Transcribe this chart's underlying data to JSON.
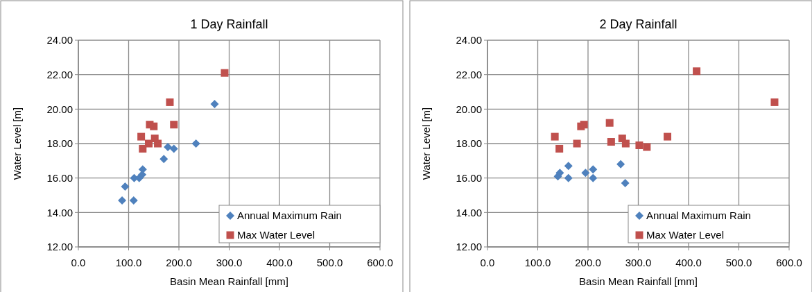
{
  "chart_data": [
    {
      "type": "scatter",
      "title": "1 Day Rainfall",
      "xlabel": "Basin Mean Rainfall [mm]",
      "ylabel": "Water Level [m]",
      "xlim": [
        0,
        600
      ],
      "xticks": [
        {
          "value": 0,
          "label": "0.0"
        },
        {
          "value": 100,
          "label": "100.0"
        },
        {
          "value": 200,
          "label": "200.0"
        },
        {
          "value": 300,
          "label": "300.0"
        },
        {
          "value": 400,
          "label": "400.0"
        },
        {
          "value": 500,
          "label": "500.0"
        },
        {
          "value": 600,
          "label": "600.0"
        }
      ],
      "ylim": [
        12,
        24
      ],
      "yticks": [
        {
          "value": 12,
          "label": "12.00"
        },
        {
          "value": 14,
          "label": "14.00"
        },
        {
          "value": 16,
          "label": "16.00"
        },
        {
          "value": 18,
          "label": "18.00"
        },
        {
          "value": 20,
          "label": "20.00"
        },
        {
          "value": 22,
          "label": "22.00"
        },
        {
          "value": 24,
          "label": "24.00"
        }
      ],
      "grid": true,
      "legend": "bottom right",
      "series": [
        {
          "name": "Annual Maximum Rain",
          "color": "#4f81bd",
          "marker": "diamond",
          "x": [
            87,
            93,
            110,
            111,
            121,
            127,
            128,
            170,
            178,
            190,
            234,
            271
          ],
          "values": [
            14.7,
            15.5,
            14.7,
            16.0,
            16.0,
            16.2,
            16.5,
            17.1,
            17.8,
            17.7,
            18.0,
            20.3
          ]
        },
        {
          "name": "Max Water Level",
          "color": "#c0504d",
          "marker": "square",
          "x": [
            291,
            182,
            190,
            142,
            150,
            125,
            128,
            152,
            140,
            158
          ],
          "values": [
            22.1,
            20.4,
            19.1,
            19.1,
            19.0,
            18.4,
            17.7,
            18.3,
            18.0,
            18.0
          ]
        }
      ]
    },
    {
      "type": "scatter",
      "title": "2 Day Rainfall",
      "xlabel": "Basin Mean Rainfall [mm]",
      "ylabel": "Water Level [m]",
      "xlim": [
        0,
        600
      ],
      "xticks": [
        {
          "value": 0,
          "label": "0.0"
        },
        {
          "value": 100,
          "label": "100.0"
        },
        {
          "value": 200,
          "label": "200.0"
        },
        {
          "value": 300,
          "label": "300.0"
        },
        {
          "value": 400,
          "label": "400.0"
        },
        {
          "value": 500,
          "label": "500.0"
        },
        {
          "value": 600,
          "label": "600.0"
        }
      ],
      "ylim": [
        12,
        24
      ],
      "yticks": [
        {
          "value": 12,
          "label": "12.00"
        },
        {
          "value": 14,
          "label": "14.00"
        },
        {
          "value": 16,
          "label": "16.00"
        },
        {
          "value": 18,
          "label": "18.00"
        },
        {
          "value": 20,
          "label": "20.00"
        },
        {
          "value": 22,
          "label": "22.00"
        },
        {
          "value": 24,
          "label": "24.00"
        }
      ],
      "grid": true,
      "legend": "bottom right",
      "series": [
        {
          "name": "Annual Maximum Rain",
          "color": "#4f81bd",
          "marker": "diamond",
          "x": [
            140,
            144,
            161,
            161,
            195,
            210,
            210,
            265,
            274
          ],
          "values": [
            16.1,
            16.3,
            16.7,
            16.0,
            16.3,
            16.5,
            16.0,
            16.8,
            15.7
          ]
        },
        {
          "name": "Max Water Level",
          "color": "#c0504d",
          "marker": "square",
          "x": [
            134,
            143,
            178,
            186,
            192,
            243,
            246,
            268,
            275,
            302,
            317,
            358,
            416,
            571
          ],
          "values": [
            18.4,
            17.7,
            18.0,
            19.0,
            19.1,
            19.2,
            18.1,
            18.3,
            18.0,
            17.9,
            17.8,
            18.4,
            22.2,
            20.4
          ]
        }
      ]
    }
  ]
}
